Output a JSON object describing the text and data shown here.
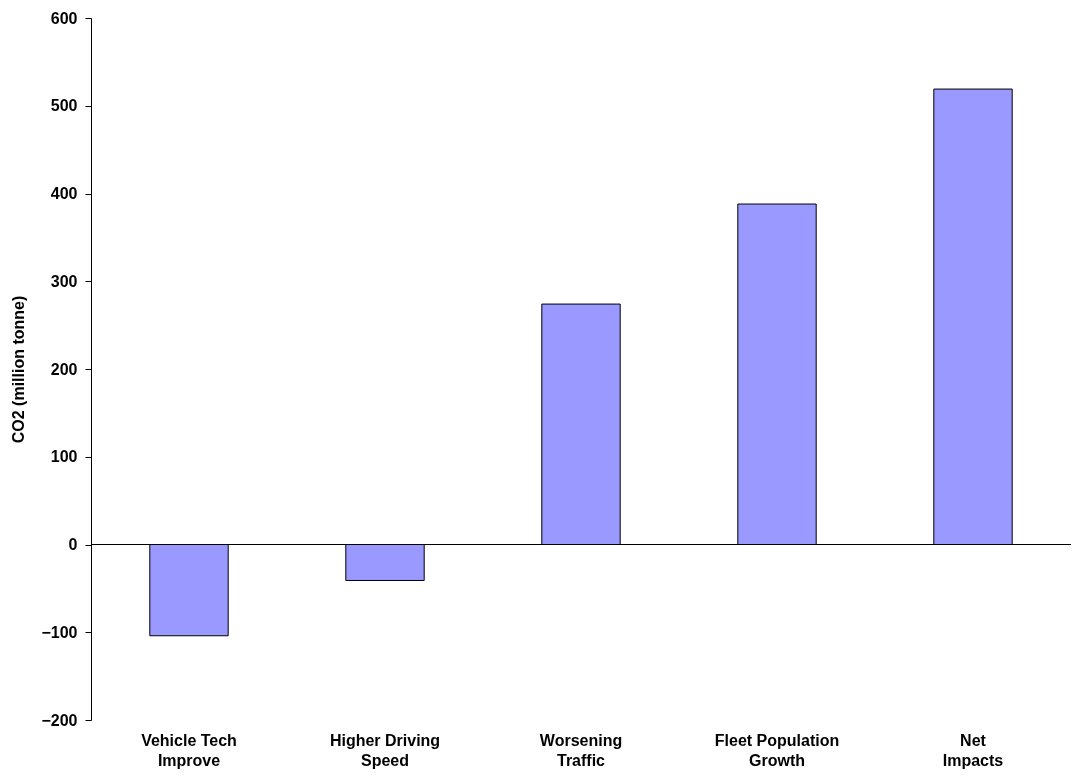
{
  "chart_data": {
    "type": "bar",
    "ylabel": "CO2 (million tonne)",
    "categories": [
      "Vehicle Tech Improve",
      "Higher Driving Speed",
      "Worsening Traffic",
      "Fleet Population Growth",
      "Net Impacts"
    ],
    "values": [
      -104,
      -41,
      274,
      388,
      519
    ],
    "color": "#9999ff",
    "ylim": [
      -200,
      600
    ],
    "yticks": [
      -200,
      -100,
      0,
      100,
      200,
      300,
      400,
      500,
      600
    ]
  }
}
